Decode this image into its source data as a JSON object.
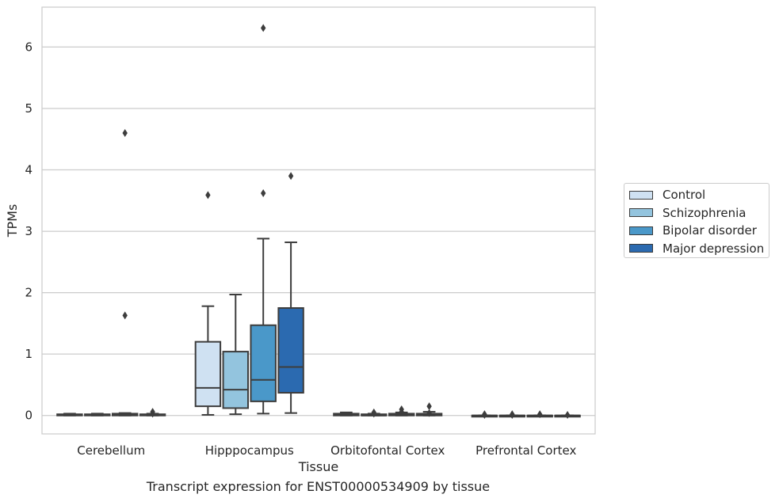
{
  "chart_data": {
    "type": "box",
    "title": "",
    "caption": "Transcript expression for ENST00000534909 by tissue",
    "xlabel": "Tissue",
    "ylabel": "TPMs",
    "ylim": [
      -0.3,
      6.65
    ],
    "yticks": [
      0,
      1,
      2,
      3,
      4,
      5,
      6
    ],
    "grid": "horizontal",
    "legend_position": "right",
    "categories": [
      "Cerebellum",
      "Hipppocampus",
      "Orbitofontal Cortex",
      "Prefrontal Cortex"
    ],
    "series": [
      {
        "name": "Control",
        "color": "#cfe1f2",
        "boxes": [
          {
            "whislo": 0.0,
            "q1": 0.0,
            "med": 0.01,
            "q3": 0.02,
            "whishi": 0.03,
            "fliers": []
          },
          {
            "whislo": 0.01,
            "q1": 0.15,
            "med": 0.45,
            "q3": 1.2,
            "whishi": 1.78,
            "fliers": [
              3.59
            ]
          },
          {
            "whislo": 0.0,
            "q1": 0.0,
            "med": 0.01,
            "q3": 0.03,
            "whishi": 0.05,
            "fliers": []
          },
          {
            "whislo": 0.0,
            "q1": 0.0,
            "med": 0.0,
            "q3": 0.0,
            "whishi": 0.0,
            "fliers": [
              0.02,
              0.01
            ]
          }
        ]
      },
      {
        "name": "Schizophrenia",
        "color": "#93c4de",
        "boxes": [
          {
            "whislo": 0.0,
            "q1": 0.0,
            "med": 0.01,
            "q3": 0.02,
            "whishi": 0.03,
            "fliers": []
          },
          {
            "whislo": 0.02,
            "q1": 0.12,
            "med": 0.42,
            "q3": 1.04,
            "whishi": 1.97,
            "fliers": []
          },
          {
            "whislo": 0.0,
            "q1": 0.0,
            "med": 0.0,
            "q3": 0.02,
            "whishi": 0.03,
            "fliers": [
              0.05,
              0.03
            ]
          },
          {
            "whislo": 0.0,
            "q1": 0.0,
            "med": 0.0,
            "q3": 0.0,
            "whishi": 0.0,
            "fliers": [
              0.02,
              0.01
            ]
          }
        ]
      },
      {
        "name": "Bipolar disorder",
        "color": "#4a98c9",
        "boxes": [
          {
            "whislo": 0.0,
            "q1": 0.0,
            "med": 0.01,
            "q3": 0.03,
            "whishi": 0.04,
            "fliers": [
              4.6,
              1.63
            ]
          },
          {
            "whislo": 0.03,
            "q1": 0.23,
            "med": 0.58,
            "q3": 1.47,
            "whishi": 2.88,
            "fliers": [
              3.62,
              6.31
            ]
          },
          {
            "whislo": 0.0,
            "q1": 0.0,
            "med": 0.01,
            "q3": 0.03,
            "whishi": 0.05,
            "fliers": [
              0.1,
              0.06
            ]
          },
          {
            "whislo": 0.0,
            "q1": 0.0,
            "med": 0.0,
            "q3": 0.0,
            "whishi": 0.0,
            "fliers": [
              0.02
            ]
          }
        ]
      },
      {
        "name": "Major depression",
        "color": "#2b6ab0",
        "boxes": [
          {
            "whislo": 0.0,
            "q1": 0.0,
            "med": 0.01,
            "q3": 0.02,
            "whishi": 0.03,
            "fliers": [
              0.06,
              0.03
            ]
          },
          {
            "whislo": 0.04,
            "q1": 0.37,
            "med": 0.79,
            "q3": 1.75,
            "whishi": 2.82,
            "fliers": [
              3.9
            ]
          },
          {
            "whislo": 0.0,
            "q1": 0.0,
            "med": 0.01,
            "q3": 0.03,
            "whishi": 0.06,
            "fliers": [
              0.15,
              0.04
            ]
          },
          {
            "whislo": 0.0,
            "q1": 0.0,
            "med": 0.0,
            "q3": 0.0,
            "whishi": 0.0,
            "fliers": [
              0.01
            ]
          }
        ]
      }
    ]
  }
}
